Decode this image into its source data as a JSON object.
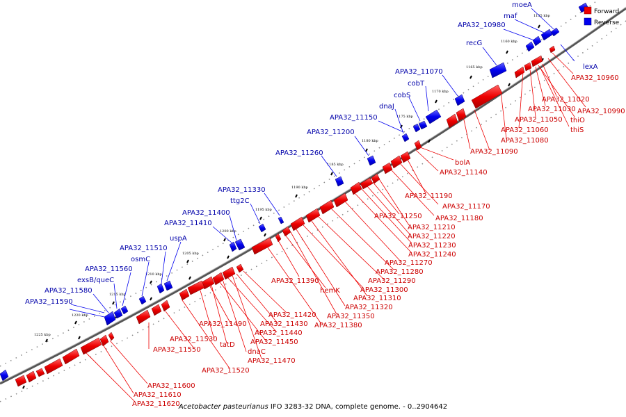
{
  "title": "Acetobacter pasteurianus IFO 3283-32 DNA, complete genome. - 0..2904642",
  "title_parts": {
    "organism": "Acetobacter pasteurianus",
    "rest": "IFO 3283-32 DNA, complete genome. - 0..2904642"
  },
  "legend": {
    "forward_label": "Forward",
    "reverse_label": "Reverse",
    "forward_color": "#ee0000",
    "reverse_color": "#0000ee"
  },
  "colors": {
    "forward_label": "#cc0000",
    "reverse_label": "#0000aa",
    "backbone": "#555555"
  },
  "ruler_labels": [
    "1155 kbp",
    "1160 kbp",
    "1165 kbp",
    "1170 kbp",
    "1175 kbp",
    "1180 kbp",
    "1185 kbp",
    "1190 kbp",
    "1195 kbp",
    "1200 kbp",
    "1205 kbp",
    "1210 kbp",
    "1215 kbp",
    "1220 kbp",
    "1225 kbp"
  ],
  "reverse_genes": [
    "moeA",
    "maf",
    "APA32_10980",
    "recG",
    "lexA",
    "APA32_11070",
    "cobT",
    "cobS",
    "dnaJ",
    "APA32_11150",
    "APA32_11200",
    "APA32_11260",
    "APA32_11330",
    "ttg2C",
    "APA32_11400",
    "APA32_11410",
    "uspA",
    "APA32_11510",
    "osmC",
    "APA32_11560",
    "exsB/queC",
    "APA32_11580",
    "APA32_11590"
  ],
  "forward_genes": [
    "APA32_10960",
    "APA32_11020",
    "APA32_11030",
    "APA32_10990",
    "APA32_11050",
    "thiO",
    "APA32_11060",
    "thiS",
    "APA32_11080",
    "APA32_11090",
    "bolA",
    "APA32_11140",
    "APA32_11190",
    "APA32_11170",
    "APA32_11180",
    "APA32_11250",
    "APA32_11210",
    "APA32_11220",
    "APA32_11230",
    "APA32_11240",
    "APA32_11270",
    "APA32_11280",
    "APA32_11290",
    "APA32_11390",
    "hemK",
    "APA32_11300",
    "APA32_11310",
    "APA32_11320",
    "APA32_11350",
    "APA32_11380",
    "APA32_11420",
    "APA32_11430",
    "APA32_11440",
    "APA32_11450",
    "APA32_11490",
    "APA32_11530",
    "tatD",
    "dnaC",
    "APA32_11470",
    "APA32_11550",
    "APA32_11520",
    "APA32_11600",
    "APA32_11610",
    "APA32_11620"
  ]
}
